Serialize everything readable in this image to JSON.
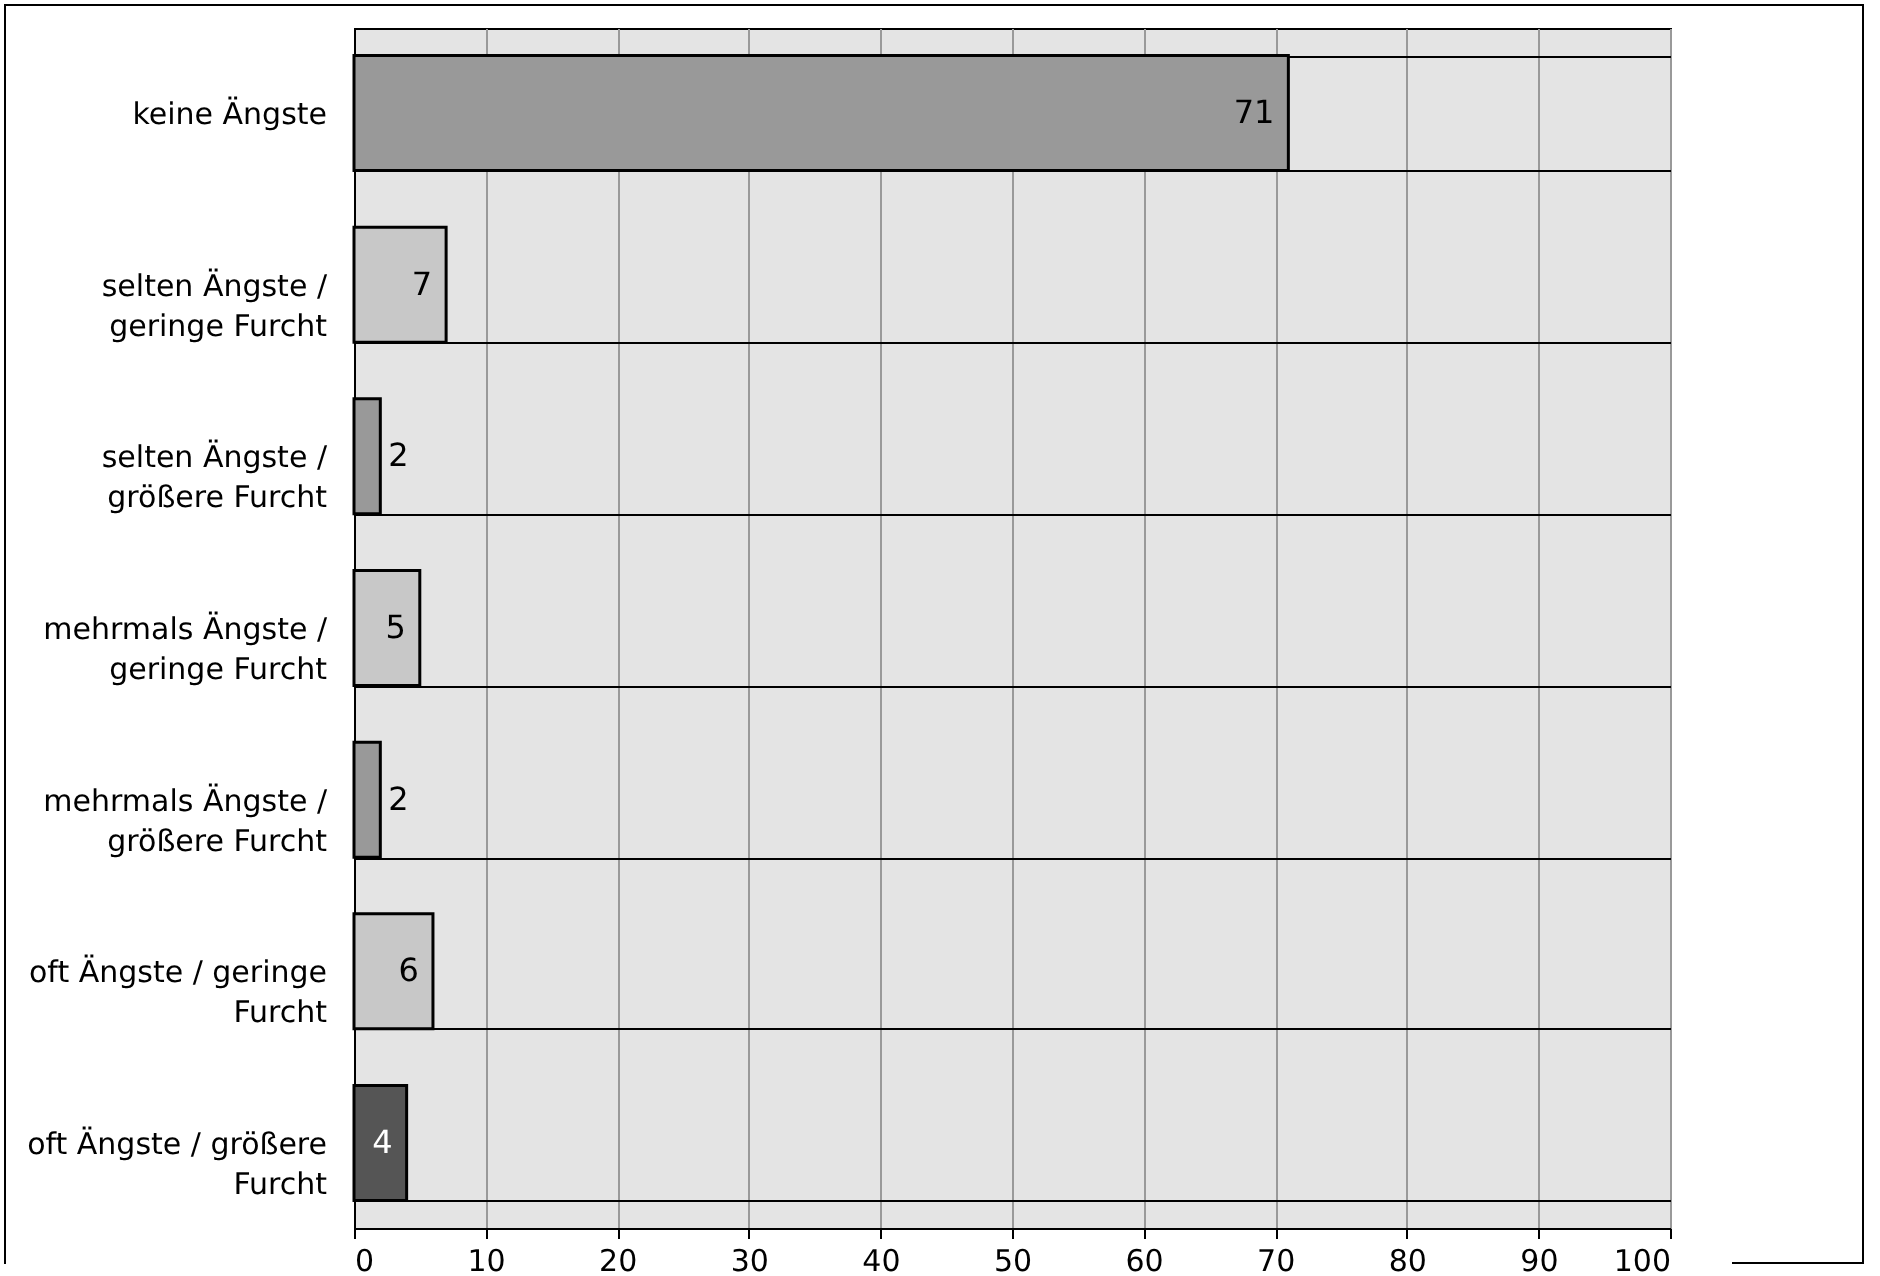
{
  "chart_data": {
    "type": "bar",
    "orientation": "horizontal",
    "categories": [
      "keine Ängste",
      "selten Ängste / geringe Furcht",
      "selten Ängste / größere Furcht",
      "mehrmals Ängste / geringe Furcht",
      "mehrmals Ängste / größere Furcht",
      "oft Ängste / geringe Furcht",
      "oft Ängste / größere Furcht"
    ],
    "values": [
      71,
      7,
      2,
      5,
      2,
      6,
      4
    ],
    "colors": [
      "#999999",
      "#c8c8c8",
      "#999999",
      "#c8c8c8",
      "#999999",
      "#c8c8c8",
      "#555555"
    ],
    "xlim": [
      0,
      100
    ],
    "xticks": [
      0,
      10,
      20,
      30,
      40,
      50,
      60,
      70,
      80,
      90,
      100
    ],
    "grid": "x",
    "data_labels": true
  }
}
